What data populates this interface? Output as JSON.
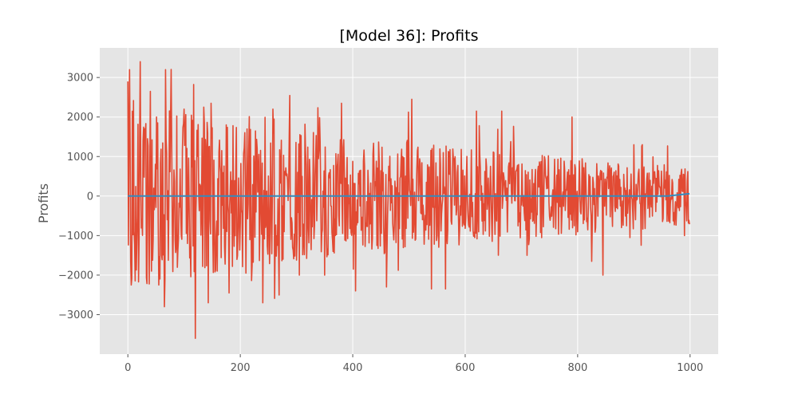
{
  "chart_data": {
    "type": "line",
    "title": "[Model 36]: Profits",
    "xlabel": "",
    "ylabel": "Profits",
    "xlim": [
      -50,
      1050
    ],
    "ylim": [
      -4000,
      3750
    ],
    "x_ticks": [
      0,
      200,
      400,
      600,
      800,
      1000
    ],
    "y_ticks": [
      -3000,
      -2000,
      -1000,
      0,
      1000,
      2000,
      3000
    ],
    "x_tick_labels": [
      "0",
      "200",
      "400",
      "600",
      "800",
      "1000"
    ],
    "y_tick_labels": [
      "−3000",
      "−2000",
      "−1000",
      "0",
      "1000",
      "2000",
      "3000"
    ],
    "grid": true,
    "legend": "none",
    "colors": {
      "plot_background": "#e5e5e5",
      "grid": "#ffffff",
      "profits_line": "#e24a33",
      "baseline_line": "#348abd"
    },
    "series": [
      {
        "key": "profits",
        "x_range": [
          0,
          999
        ],
        "num_points": 1000,
        "y_range_observed": [
          -3600,
          3400
        ],
        "amplitude_envelope_start": 3000,
        "amplitude_envelope_end": 900,
        "random_seed": 36,
        "anchor_points": [
          {
            "x": 0,
            "y": 2900
          },
          {
            "x": 3,
            "y": 3200
          },
          {
            "x": 5,
            "y": -1650
          },
          {
            "x": 6,
            "y": -2250
          },
          {
            "x": 22,
            "y": 3400
          },
          {
            "x": 40,
            "y": 2650
          },
          {
            "x": 55,
            "y": -2250
          },
          {
            "x": 65,
            "y": -2800
          },
          {
            "x": 67,
            "y": 3200
          },
          {
            "x": 100,
            "y": 2200
          },
          {
            "x": 120,
            "y": -3600
          },
          {
            "x": 135,
            "y": 2250
          },
          {
            "x": 143,
            "y": -2700
          },
          {
            "x": 148,
            "y": 2350
          },
          {
            "x": 180,
            "y": -2450
          },
          {
            "x": 210,
            "y": -1950
          },
          {
            "x": 240,
            "y": -2700
          },
          {
            "x": 258,
            "y": 2200
          },
          {
            "x": 305,
            "y": -2000
          },
          {
            "x": 350,
            "y": -2000
          },
          {
            "x": 380,
            "y": 2350
          },
          {
            "x": 405,
            "y": -2400
          },
          {
            "x": 460,
            "y": -2300
          },
          {
            "x": 505,
            "y": 2450
          },
          {
            "x": 540,
            "y": -2350
          },
          {
            "x": 565,
            "y": -2350
          },
          {
            "x": 620,
            "y": 2150
          },
          {
            "x": 665,
            "y": 2150
          },
          {
            "x": 710,
            "y": -1500
          },
          {
            "x": 790,
            "y": 2000
          },
          {
            "x": 825,
            "y": -1650
          },
          {
            "x": 845,
            "y": -2000
          },
          {
            "x": 900,
            "y": 1300
          },
          {
            "x": 990,
            "y": -1000
          }
        ]
      },
      {
        "key": "baseline",
        "x_range": [
          0,
          999
        ],
        "num_points": 1000,
        "start_value": 0,
        "end_value": 60
      }
    ]
  }
}
